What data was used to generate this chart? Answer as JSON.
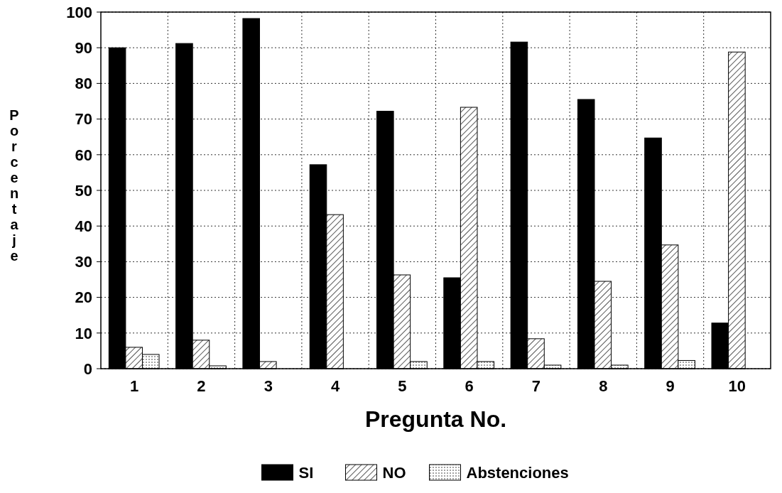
{
  "chart_data": {
    "type": "bar",
    "xlabel": "Pregunta No.",
    "ylabel": "Porcentaje",
    "categories": [
      "1",
      "2",
      "3",
      "4",
      "5",
      "6",
      "7",
      "8",
      "9",
      "10"
    ],
    "series": [
      {
        "name": "SI",
        "color": "#000000",
        "values": [
          90,
          91.2,
          98.2,
          57.2,
          72.2,
          25.5,
          91.6,
          75.5,
          64.7,
          12.8
        ]
      },
      {
        "name": "NO",
        "color": "#000000",
        "values": [
          6,
          8,
          2,
          43.2,
          26.3,
          73.3,
          8.4,
          24.5,
          34.7,
          88.8
        ]
      },
      {
        "name": "Abstenciones",
        "color": "#000000",
        "values": [
          4,
          0.8,
          0,
          0,
          2,
          2,
          1,
          1,
          2.3,
          0
        ]
      }
    ],
    "ylim": [
      0,
      100
    ],
    "yticks": [
      0,
      10,
      20,
      30,
      40,
      50,
      60,
      70,
      80,
      90,
      100
    ],
    "grid": true,
    "legend": "bottom"
  }
}
